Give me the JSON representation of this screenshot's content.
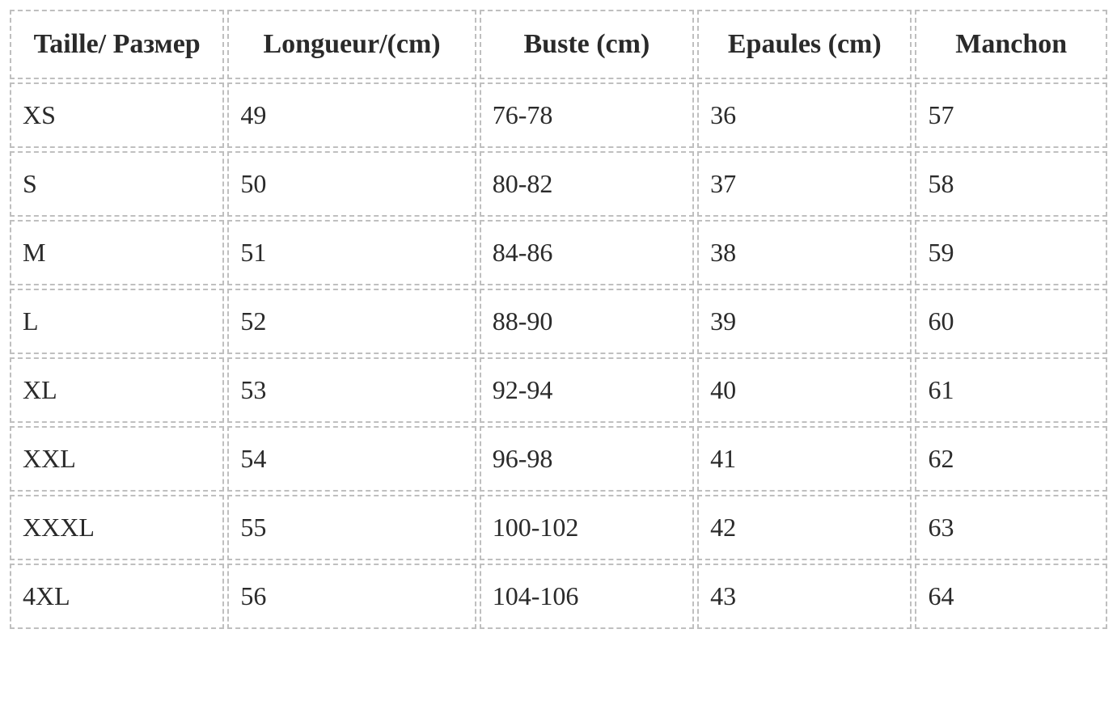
{
  "table": {
    "columns": [
      {
        "label": "Taille/ Размер",
        "class": "col-size"
      },
      {
        "label": "Longueur/(cm)",
        "class": "col-length"
      },
      {
        "label": "Buste (cm)",
        "class": "col-bust"
      },
      {
        "label": "Epaules (cm)",
        "class": "col-shoulder"
      },
      {
        "label": "Manchon",
        "class": "col-sleeve"
      }
    ],
    "rows": [
      [
        "XS",
        "49",
        "76-78",
        "36",
        "57"
      ],
      [
        "S",
        "50",
        "80-82",
        "37",
        "58"
      ],
      [
        "M",
        "51",
        "84-86",
        "38",
        "59"
      ],
      [
        "L",
        "52",
        "88-90",
        "39",
        "60"
      ],
      [
        "XL",
        "53",
        "92-94",
        "40",
        "61"
      ],
      [
        "XXL",
        "54",
        "96-98",
        "41",
        "62"
      ],
      [
        "XXXL",
        "55",
        "100-102",
        "42",
        "63"
      ],
      [
        "4XL",
        "56",
        "104-106",
        "43",
        "64"
      ]
    ],
    "styling": {
      "border_style": "dashed",
      "border_color": "#bfbfbf",
      "border_width": 2,
      "cell_spacing": 4,
      "header_fontsize": 34,
      "header_fontweight": "bold",
      "header_align": "center",
      "body_fontsize": 32,
      "body_align": "left",
      "text_color": "#2a2a2a",
      "background_color": "#ffffff",
      "font_family": "Georgia, serif"
    }
  }
}
